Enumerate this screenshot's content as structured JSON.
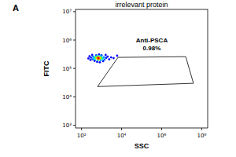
{
  "chart_data": {
    "type": "scatter",
    "panel_label": "A",
    "title": "irrelevant protein",
    "x_label": "SSC",
    "y_label": "FITC",
    "log": true,
    "grid": false,
    "xlim": [
      50,
      200000000
    ],
    "ylim": [
      800,
      12000000
    ],
    "xticks": [
      {
        "value": 100,
        "label": "10²"
      },
      {
        "value": 10000,
        "label": "10⁴"
      },
      {
        "value": 1000000,
        "label": "10⁶"
      },
      {
        "value": 100000000,
        "label": "10⁸"
      }
    ],
    "yticks": [
      {
        "value": 1000,
        "label": "10³"
      },
      {
        "value": 10000,
        "label": "10⁴"
      },
      {
        "value": 100000,
        "label": "10⁵"
      },
      {
        "value": 1000000,
        "label": "10⁶"
      },
      {
        "value": 10000000,
        "label": "10⁷"
      }
    ],
    "marker": "circle",
    "x": [
      700,
      650,
      760,
      600,
      820,
      550,
      900,
      680,
      720,
      500,
      980,
      480,
      1050,
      600,
      850,
      420,
      1150,
      640,
      900,
      380,
      1300,
      360,
      1400,
      540,
      1000,
      300,
      1700,
      450,
      1200,
      280,
      2000,
      750,
      250,
      2400,
      600,
      1600,
      220,
      3000,
      820,
      340,
      4000,
      6000
    ],
    "values": [
      230000,
      240000,
      220000,
      220000,
      245000,
      235000,
      225000,
      260000,
      205000,
      250000,
      240000,
      215000,
      215000,
      270000,
      275000,
      235000,
      230000,
      195000,
      195000,
      260000,
      250000,
      210000,
      205000,
      290000,
      290000,
      240000,
      235000,
      185000,
      180000,
      200000,
      260000,
      310000,
      270000,
      210000,
      170000,
      300000,
      225000,
      245000,
      165000,
      300000,
      230000,
      280000
    ],
    "colors": [
      "#ff0000",
      "#ff4000",
      "#ff8000",
      "#ffc000",
      "#ffc000",
      "#c0ff00",
      "#c0ff00",
      "#80ff00",
      "#80ff00",
      "#00ff40",
      "#00ff40",
      "#00ffc0",
      "#00ffc0",
      "#00e0ff",
      "#00e0ff",
      "#00c0ff",
      "#00c0ff",
      "#00a0ff",
      "#00a0ff",
      "#0080ff",
      "#0080ff",
      "#0060ff",
      "#0060ff",
      "#0040ff",
      "#0040ff",
      "#0020ff",
      "#0020ff",
      "#0000ff",
      "#0000ff",
      "#0000ff",
      "#0000ff",
      "#0000ff",
      "#0000ff",
      "#0000ff",
      "#0000ff",
      "#0000ff",
      "#0000ff",
      "#0000ff",
      "#0000ff",
      "#0000ff",
      "#0000ff",
      "#0000ff"
    ],
    "gate": {
      "label": "Anti-PSCA",
      "percent": 0.98,
      "percent_label": "0.98%",
      "x": [
        6600,
        16000000,
        39000000,
        630
      ],
      "y": [
        245000,
        260000,
        30000,
        23000
      ]
    }
  }
}
